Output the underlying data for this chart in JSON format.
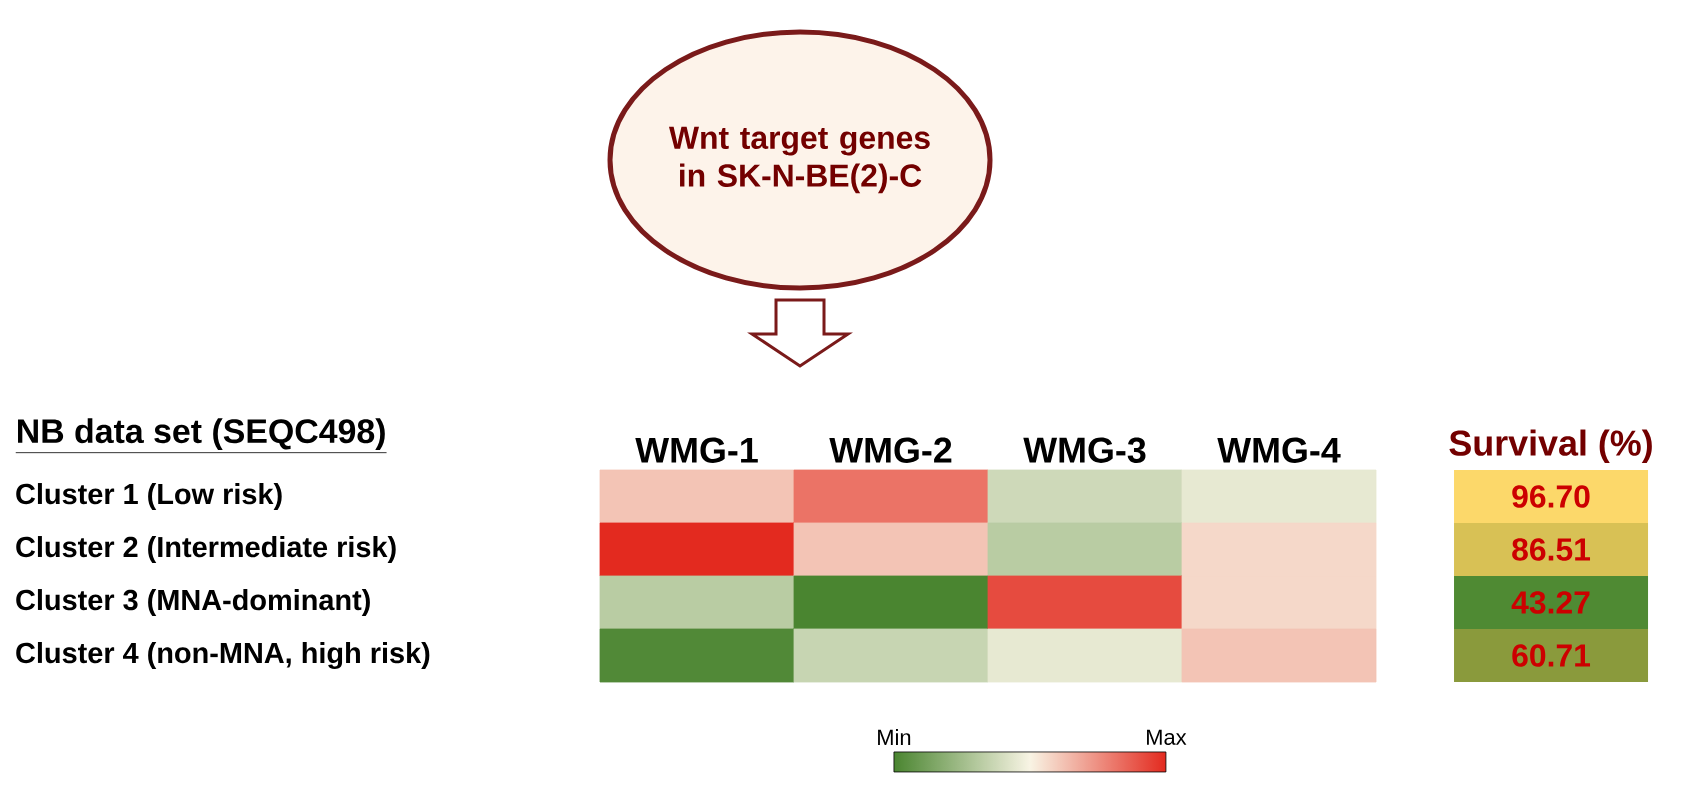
{
  "chart_data": [
    {
      "type": "heatmap",
      "title": "NB data set (SEQC498)",
      "annotations": [
        "Wnt target genes in SK-N-BE(2)-C"
      ],
      "categories": [
        "WMG-1",
        "WMG-2",
        "WMG-3",
        "WMG-4"
      ],
      "y_categories": [
        "Cluster 1 (Low risk)",
        "Cluster 2 (Intermediate risk)",
        "Cluster 3 (MNA-dominant)",
        "Cluster 4 (non-MNA, high risk)"
      ],
      "cells": [
        [
          0.62,
          0.82,
          0.38,
          0.45
        ],
        [
          1.0,
          0.62,
          0.32,
          0.57
        ],
        [
          0.32,
          0.0,
          0.92,
          0.57
        ],
        [
          0.02,
          0.36,
          0.45,
          0.62
        ]
      ],
      "colors": [
        "#4a8530",
        "#f8f4e4",
        "#e32a1f"
      ],
      "clim": [
        0,
        1
      ],
      "cticks": [
        {
          "value": 0,
          "label": "Min"
        },
        {
          "value": 1,
          "label": "Max"
        }
      ]
    },
    {
      "type": "heatmap",
      "categories": [
        "Survival (%)"
      ],
      "y_categories": [
        null,
        null,
        null,
        null
      ],
      "cells": [
        [
          96.7
        ],
        [
          86.51
        ],
        [
          43.27
        ],
        [
          60.71
        ]
      ],
      "cell_labels": [
        [
          "96.70"
        ],
        [
          "86.51"
        ],
        [
          "43.27"
        ],
        [
          "60.71"
        ]
      ],
      "colors": [
        [
          "#fcd86a"
        ],
        [
          "#d8c155"
        ],
        [
          "#4f8a33"
        ],
        [
          "#8a9a3c"
        ]
      ],
      "tick_labels": "x"
    }
  ]
}
